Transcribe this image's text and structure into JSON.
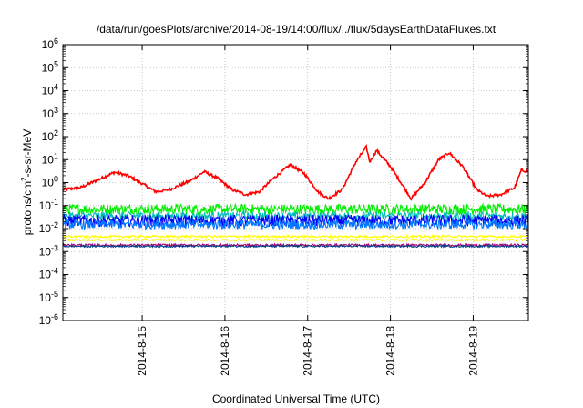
{
  "chart_data": {
    "type": "line",
    "title": "/data/run/goesPlots/archive/2014-08-19/14:00/flux/../flux/5daysEarthDataFluxes.txt",
    "xlabel": "Coordinated Universal Time (UTC)",
    "ylabel": {
      "prefix": "protons/cm",
      "sup": "2",
      "suffix": "-s-sr-MeV"
    },
    "yscale": "log",
    "ylim_exp": [
      -6,
      6
    ],
    "ytick_exponents": [
      "-6",
      "-5",
      "-4",
      "-3",
      "-2",
      "-1",
      "0",
      "1",
      "2",
      "3",
      "4",
      "5",
      "6"
    ],
    "ytick_base": "10",
    "xlim": [
      "2014-08-14T01:00",
      "2014-08-19T16:00"
    ],
    "xticks": [
      {
        "date": "2014-08-15T00:00",
        "label": "2014-8-15"
      },
      {
        "date": "2014-08-16T00:00",
        "label": "2014-8-16"
      },
      {
        "date": "2014-08-17T00:00",
        "label": "2014-8-17"
      },
      {
        "date": "2014-08-18T00:00",
        "label": "2014-8-18"
      },
      {
        "date": "2014-08-19T00:00",
        "label": "2014-8-19"
      }
    ],
    "grid": true,
    "series": [
      {
        "color": "#ff0000",
        "noise": 0.06,
        "points": [
          [
            "2014-08-14T01:00",
            0.5
          ],
          [
            "2014-08-14T06:00",
            0.6
          ],
          [
            "2014-08-14T12:00",
            1.5
          ],
          [
            "2014-08-14T16:00",
            2.8
          ],
          [
            "2014-08-14T20:00",
            2.0
          ],
          [
            "2014-08-15T00:00",
            0.9
          ],
          [
            "2014-08-15T04:00",
            0.4
          ],
          [
            "2014-08-15T08:00",
            0.5
          ],
          [
            "2014-08-15T14:00",
            1.2
          ],
          [
            "2014-08-15T18:00",
            3.0
          ],
          [
            "2014-08-15T22:00",
            1.5
          ],
          [
            "2014-08-16T02:00",
            0.5
          ],
          [
            "2014-08-16T06:00",
            0.3
          ],
          [
            "2014-08-16T10:00",
            0.4
          ],
          [
            "2014-08-16T14:00",
            1.5
          ],
          [
            "2014-08-16T19:00",
            6.0
          ],
          [
            "2014-08-16T23:00",
            2.5
          ],
          [
            "2014-08-17T03:00",
            0.4
          ],
          [
            "2014-08-17T06:00",
            0.2
          ],
          [
            "2014-08-17T10:00",
            0.5
          ],
          [
            "2014-08-17T14:00",
            8.0
          ],
          [
            "2014-08-17T17:00",
            35.0
          ],
          [
            "2014-08-17T18:00",
            8.0
          ],
          [
            "2014-08-17T20:00",
            25.0
          ],
          [
            "2014-08-18T00:00",
            5.0
          ],
          [
            "2014-08-18T04:00",
            0.6
          ],
          [
            "2014-08-18T06:00",
            0.2
          ],
          [
            "2014-08-18T10:00",
            1.0
          ],
          [
            "2014-08-18T14:00",
            10.0
          ],
          [
            "2014-08-18T17:00",
            20.0
          ],
          [
            "2014-08-18T21:00",
            5.0
          ],
          [
            "2014-08-19T01:00",
            0.5
          ],
          [
            "2014-08-19T04:00",
            0.25
          ],
          [
            "2014-08-19T08:00",
            0.3
          ],
          [
            "2014-08-19T12:00",
            0.6
          ],
          [
            "2014-08-19T14:00",
            3.5
          ],
          [
            "2014-08-19T16:00",
            3.0
          ]
        ]
      },
      {
        "color": "#00ee00",
        "noise": 0.22,
        "points": [
          [
            "2014-08-14T01:00",
            0.07
          ],
          [
            "2014-08-16T00:00",
            0.07
          ],
          [
            "2014-08-18T00:00",
            0.07
          ],
          [
            "2014-08-19T16:00",
            0.07
          ]
        ]
      },
      {
        "color": "#00bbbb",
        "noise": 0.18,
        "points": [
          [
            "2014-08-14T01:00",
            0.035
          ],
          [
            "2014-08-19T16:00",
            0.035
          ]
        ]
      },
      {
        "color": "#0000ff",
        "noise": 0.25,
        "points": [
          [
            "2014-08-14T01:00",
            0.022
          ],
          [
            "2014-08-19T16:00",
            0.022
          ]
        ]
      },
      {
        "color": "#0077ff",
        "noise": 0.2,
        "points": [
          [
            "2014-08-14T01:00",
            0.015
          ],
          [
            "2014-08-19T16:00",
            0.015
          ]
        ]
      },
      {
        "color": "#ffff00",
        "noise": 0.05,
        "points": [
          [
            "2014-08-14T01:00",
            0.0045
          ],
          [
            "2014-08-19T16:00",
            0.0045
          ]
        ]
      },
      {
        "color": "#ffee00",
        "noise": 0.04,
        "points": [
          [
            "2014-08-14T01:00",
            0.0032
          ],
          [
            "2014-08-19T16:00",
            0.0032
          ]
        ]
      },
      {
        "color": "#aa0077",
        "noise": 0.05,
        "points": [
          [
            "2014-08-14T01:00",
            0.0019
          ],
          [
            "2014-08-19T16:00",
            0.0019
          ]
        ]
      },
      {
        "color": "#004488",
        "noise": 0.04,
        "points": [
          [
            "2014-08-14T01:00",
            0.0017
          ],
          [
            "2014-08-19T16:00",
            0.0017
          ]
        ]
      }
    ]
  }
}
